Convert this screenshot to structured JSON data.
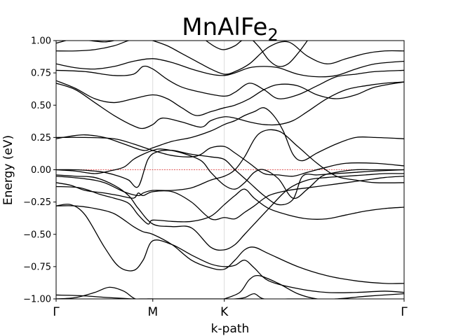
{
  "chart_data": {
    "type": "line",
    "title": "MnAlFe",
    "title_subscript": "2",
    "xlabel": "k-path",
    "ylabel": "Energy (eV)",
    "ylim": [
      -1.0,
      1.0
    ],
    "yticks": [
      -1.0,
      -0.75,
      -0.5,
      -0.25,
      0.0,
      0.25,
      0.5,
      0.75,
      1.0
    ],
    "ytick_labels": [
      "−1.00",
      "−0.75",
      "−0.50",
      "−0.25",
      "0.00",
      "0.25",
      "0.50",
      "0.75",
      "1.00"
    ],
    "kpoints": [
      {
        "label": "Γ",
        "pos": 0.0
      },
      {
        "label": "M",
        "pos": 1.0
      },
      {
        "label": "K",
        "pos": 1.74
      },
      {
        "label": "Γ",
        "pos": 3.6
      }
    ],
    "fermi_level": 0.0,
    "colors": {
      "bands": "#000000",
      "fermi": "#d62728",
      "grid": "#d3d3d3"
    },
    "grid": "vertical at k-points",
    "series": [
      {
        "x": [
          0,
          0.25,
          0.55,
          0.8,
          0.9,
          1.0,
          1.2,
          1.4,
          1.6,
          1.74,
          1.85,
          1.95,
          2.05,
          2.15,
          2.4,
          2.6,
          2.9,
          3.2,
          3.6
        ],
        "y": [
          -0.97,
          -0.975,
          -0.99,
          -1.0,
          -1.0,
          -1.0,
          -1.0,
          -1.0,
          -1.0,
          -1.0,
          -1.0,
          -0.99,
          -0.96,
          -1.0,
          -1.0,
          -1.0,
          -1.0,
          -0.98,
          -0.96
        ]
      },
      {
        "x": [
          0,
          0.2,
          0.4,
          0.55,
          0.7,
          0.82,
          0.95,
          1.0
        ],
        "y": [
          -1.0,
          -0.99,
          -0.95,
          -0.91,
          -0.94,
          -1.0,
          -1.0,
          -1.0
        ]
      },
      {
        "x": [
          1.74,
          1.9,
          2.0,
          2.1,
          2.3,
          2.5,
          2.7,
          2.9
        ],
        "y": [
          -1.0,
          -0.95,
          -0.85,
          -0.82,
          -0.88,
          -0.96,
          -1.0,
          -1.0
        ]
      },
      {
        "x": [
          0,
          0.15,
          0.3,
          0.5,
          0.65,
          0.8,
          0.9,
          1.0,
          1.2,
          1.4,
          1.6,
          1.74,
          1.85,
          1.95,
          2.05,
          2.2,
          2.5,
          2.8,
          3.1,
          3.4,
          3.6
        ],
        "y": [
          -0.28,
          -0.27,
          -0.35,
          -0.6,
          -0.75,
          -0.78,
          -0.7,
          -0.55,
          -0.58,
          -0.66,
          -0.73,
          -0.75,
          -0.74,
          -0.7,
          -0.76,
          -0.86,
          -0.92,
          -0.95,
          -0.95,
          -0.94,
          -0.95
        ]
      },
      {
        "x": [
          0,
          0.2,
          0.4,
          0.6,
          0.8,
          0.9,
          1.0,
          1.2,
          1.4,
          1.6,
          1.74,
          1.85,
          1.95,
          2.05,
          2.2,
          2.5,
          2.8,
          3.1,
          3.4,
          3.6
        ],
        "y": [
          -0.28,
          -0.28,
          -0.3,
          -0.34,
          -0.44,
          -0.48,
          -0.5,
          -0.58,
          -0.7,
          -0.76,
          -0.77,
          -0.7,
          -0.62,
          -0.6,
          -0.65,
          -0.75,
          -0.82,
          -0.86,
          -0.88,
          -0.88
        ]
      },
      {
        "x": [
          0,
          0.2,
          0.4,
          0.6,
          0.75,
          0.85,
          1.0,
          1.2,
          1.4,
          1.6,
          1.74,
          1.85,
          1.95,
          2.05,
          2.2,
          2.4,
          2.6,
          2.8,
          3.0,
          3.2,
          3.4,
          3.6
        ],
        "y": [
          -0.04,
          -0.05,
          -0.06,
          -0.12,
          -0.2,
          -0.3,
          -0.42,
          -0.44,
          -0.45,
          -0.6,
          -0.62,
          -0.58,
          -0.5,
          -0.42,
          -0.3,
          -0.15,
          -0.08,
          -0.06,
          -0.05,
          -0.04,
          -0.03,
          -0.03
        ]
      },
      {
        "x": [
          0,
          0.25,
          0.45,
          0.6,
          0.75,
          0.85,
          0.95,
          1.0,
          1.2,
          1.4,
          1.6,
          1.74,
          1.85,
          1.95,
          2.05,
          2.2,
          2.4,
          2.6,
          2.8,
          3.0,
          3.2,
          3.4,
          3.6
        ],
        "y": [
          -0.13,
          -0.14,
          -0.19,
          -0.22,
          -0.26,
          -0.35,
          -0.42,
          -0.39,
          -0.4,
          -0.4,
          -0.36,
          -0.27,
          -0.2,
          -0.15,
          -0.22,
          -0.3,
          -0.35,
          -0.38,
          -0.38,
          -0.35,
          -0.32,
          -0.3,
          -0.29
        ]
      },
      {
        "x": [
          0,
          0.15,
          0.3,
          0.5,
          0.65,
          0.8,
          0.85,
          0.9,
          1.0,
          1.2,
          1.4,
          1.6,
          1.74,
          1.85,
          1.95,
          2.05,
          2.2,
          2.4,
          2.6,
          2.8,
          3.0,
          3.2,
          3.4,
          3.6
        ],
        "y": [
          -0.1,
          -0.12,
          -0.16,
          -0.18,
          -0.2,
          -0.22,
          -0.18,
          -0.2,
          -0.17,
          -0.17,
          -0.25,
          -0.38,
          -0.37,
          -0.38,
          -0.33,
          -0.28,
          -0.2,
          -0.16,
          -0.14,
          -0.12,
          -0.1,
          -0.08,
          -0.06,
          -0.05
        ]
      },
      {
        "x": [
          0,
          0.3,
          0.5,
          0.7,
          0.85,
          0.9,
          1.0,
          1.2,
          1.4,
          1.6,
          1.74,
          1.85,
          1.95,
          2.1,
          2.3,
          2.5,
          2.7,
          2.9,
          3.1,
          3.3,
          3.6
        ],
        "y": [
          -0.05,
          -0.07,
          -0.1,
          -0.17,
          -0.2,
          -0.18,
          -0.16,
          -0.16,
          -0.14,
          -0.08,
          -0.05,
          -0.0,
          0.1,
          0.28,
          0.3,
          0.18,
          0.05,
          -0.05,
          -0.08,
          -0.1,
          -0.1
        ]
      },
      {
        "x": [
          0,
          0.2,
          0.4,
          0.55,
          0.7,
          0.8,
          0.9,
          1.0,
          1.1,
          1.3,
          1.5,
          1.6,
          1.74,
          1.85,
          1.95,
          2.05,
          2.15,
          2.3,
          2.45,
          2.6,
          2.75,
          2.9,
          3.1,
          3.3,
          3.6
        ],
        "y": [
          0.0,
          -0.01,
          -0.03,
          -0.01,
          0.02,
          0.08,
          0.12,
          0.15,
          0.16,
          0.13,
          0.07,
          -0.02,
          -0.12,
          -0.15,
          -0.1,
          -0.02,
          0.0,
          -0.07,
          -0.22,
          -0.15,
          -0.05,
          -0.02,
          0.0,
          0.0,
          0.0
        ]
      },
      {
        "x": [
          0,
          0.2,
          0.4,
          0.5,
          0.65,
          0.75,
          0.85,
          0.95,
          1.05,
          1.2,
          1.4,
          1.6,
          1.74,
          1.85,
          2.0,
          2.15,
          2.3,
          2.45,
          2.55,
          2.7,
          2.9,
          3.1,
          3.3,
          3.6
        ],
        "y": [
          0.0,
          0.0,
          -0.01,
          -0.02,
          -0.05,
          -0.08,
          -0.13,
          0.08,
          0.14,
          0.15,
          0.12,
          0.1,
          0.08,
          0.0,
          -0.1,
          -0.2,
          -0.27,
          -0.23,
          -0.05,
          -0.04,
          -0.03,
          -0.02,
          -0.01,
          0.0
        ]
      },
      {
        "x": [
          0,
          0.3,
          0.6,
          0.8,
          1.0,
          1.2,
          1.4,
          1.5,
          1.6,
          1.74,
          1.85,
          2.0,
          2.15,
          2.3,
          2.45,
          2.6,
          2.8,
          3.0,
          3.3,
          3.6
        ],
        "y": [
          0.25,
          0.25,
          0.24,
          0.2,
          0.15,
          0.11,
          0.1,
          0.12,
          0.17,
          0.18,
          0.13,
          0.05,
          -0.03,
          -0.04,
          -0.05,
          -0.02,
          0.02,
          0.05,
          0.05,
          0.03
        ]
      },
      {
        "x": [
          0,
          0.15,
          0.3,
          0.5,
          0.7,
          0.9,
          1.0,
          1.2,
          1.4,
          1.6,
          1.74,
          1.85,
          1.95,
          2.05,
          2.15,
          2.25,
          2.35,
          2.45,
          2.55,
          2.7,
          2.9,
          3.1,
          3.3,
          3.6
        ],
        "y": [
          0.24,
          0.26,
          0.27,
          0.25,
          0.2,
          0.15,
          0.17,
          0.22,
          0.25,
          0.3,
          0.35,
          0.38,
          0.42,
          0.45,
          0.48,
          0.42,
          0.3,
          0.12,
          0.07,
          0.13,
          0.2,
          0.25,
          0.25,
          0.24
        ]
      },
      {
        "x": [
          0,
          0.2,
          0.4,
          0.6,
          0.8,
          0.9,
          1.0,
          1.1,
          1.3,
          1.5,
          1.6,
          1.74,
          1.85,
          2.0,
          2.15,
          2.3,
          2.45,
          2.6,
          2.8,
          3.0,
          3.2,
          3.4,
          3.6
        ],
        "y": [
          0.67,
          0.62,
          0.52,
          0.42,
          0.34,
          0.32,
          0.35,
          0.4,
          0.37,
          0.33,
          0.38,
          0.41,
          0.4,
          0.37,
          0.35,
          0.35,
          0.38,
          0.45,
          0.55,
          0.62,
          0.65,
          0.67,
          0.68
        ]
      },
      {
        "x": [
          0,
          0.2,
          0.4,
          0.6,
          0.8,
          1.0,
          1.15,
          1.3,
          1.45,
          1.6,
          1.74,
          1.85,
          2.0,
          2.15,
          2.3,
          2.5,
          2.7,
          2.9,
          3.1,
          3.3,
          3.6
        ],
        "y": [
          0.69,
          0.63,
          0.55,
          0.52,
          0.55,
          0.58,
          0.55,
          0.48,
          0.42,
          0.45,
          0.48,
          0.5,
          0.55,
          0.62,
          0.66,
          0.65,
          0.58,
          0.55,
          0.58,
          0.64,
          0.68
        ]
      },
      {
        "x": [
          0,
          0.3,
          0.6,
          0.8,
          0.9,
          1.0,
          1.15,
          1.3,
          1.5,
          1.74,
          1.85,
          2.0,
          2.15,
          2.3,
          2.5,
          2.7,
          2.9,
          3.1,
          3.3,
          3.6
        ],
        "y": [
          0.77,
          0.76,
          0.73,
          0.74,
          0.8,
          0.78,
          0.7,
          0.64,
          0.6,
          0.57,
          0.6,
          0.67,
          0.62,
          0.55,
          0.58,
          0.65,
          0.72,
          0.74,
          0.76,
          0.77
        ]
      },
      {
        "x": [
          0,
          0.2,
          0.4,
          0.6,
          0.8,
          1.0,
          1.2,
          1.4,
          1.6,
          1.74,
          1.85,
          2.0,
          2.15,
          2.3,
          2.5,
          2.7,
          2.9,
          3.1,
          3.3,
          3.6
        ],
        "y": [
          0.82,
          0.79,
          0.78,
          0.8,
          0.84,
          0.86,
          0.83,
          0.78,
          0.74,
          0.73,
          0.75,
          0.79,
          0.8,
          0.79,
          0.74,
          0.72,
          0.73,
          0.78,
          0.82,
          0.84
        ]
      },
      {
        "x": [
          0,
          0.2,
          0.4,
          0.6,
          0.75,
          0.9,
          1.0,
          1.15,
          1.3,
          1.45,
          1.6,
          1.74,
          1.85,
          2.0,
          2.2,
          2.4,
          2.6,
          2.8,
          3.0,
          3.2,
          3.4,
          3.6
        ],
        "y": [
          0.92,
          0.92,
          0.93,
          0.96,
          1.0,
          1.02,
          1.0,
          0.96,
          0.9,
          0.84,
          0.78,
          0.74,
          0.76,
          0.82,
          0.95,
          0.99,
          0.88,
          0.82,
          0.86,
          0.9,
          0.92,
          0.92
        ]
      },
      {
        "x": [
          1.55,
          1.65,
          1.74,
          1.85,
          1.92,
          2.0,
          2.1,
          2.2,
          2.3,
          2.4,
          2.5,
          2.6
        ],
        "y": [
          1.0,
          0.95,
          0.93,
          0.96,
          1.0,
          1.02,
          0.95,
          0.85,
          0.8,
          0.82,
          0.9,
          1.0
        ]
      },
      {
        "x": [
          0,
          0.05,
          0.1,
          0.15,
          0.25,
          0.35,
          0.5,
          0.6
        ],
        "y": [
          0.98,
          0.99,
          1.0,
          1.01,
          1.01,
          1.0,
          0.99,
          1.0
        ]
      }
    ]
  }
}
